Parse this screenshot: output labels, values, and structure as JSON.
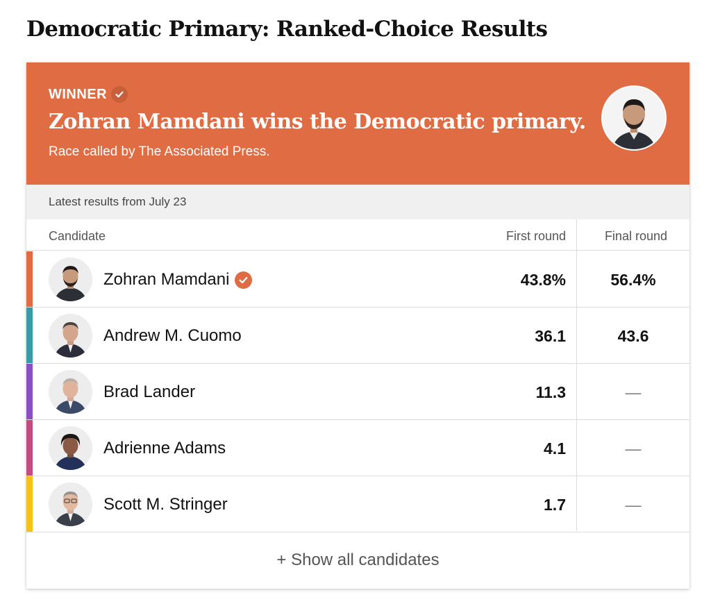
{
  "page": {
    "title": "Democratic Primary: Ranked-Choice Results"
  },
  "banner": {
    "winner_label": "WINNER",
    "headline": "Zohran Mamdani wins the Democratic primary.",
    "subline": "Race called by The Associated Press.",
    "background_color": "#e06c43"
  },
  "updated": "Latest results from July 23",
  "table": {
    "headers": {
      "candidate": "Candidate",
      "first_round": "First round",
      "final_round": "Final round"
    },
    "rows": [
      {
        "name": "Zohran Mamdani",
        "first": "43.8%",
        "final": "56.4%",
        "winner": true,
        "color": "#e06c43"
      },
      {
        "name": "Andrew M. Cuomo",
        "first": "36.1",
        "final": "43.6",
        "winner": false,
        "color": "#3a9aa5"
      },
      {
        "name": "Brad Lander",
        "first": "11.3",
        "final": "—",
        "winner": false,
        "color": "#8a4fc0"
      },
      {
        "name": "Adrienne Adams",
        "first": "4.1",
        "final": "—",
        "winner": false,
        "color": "#c44a82"
      },
      {
        "name": "Scott M. Stringer",
        "first": "1.7",
        "final": "—",
        "winner": false,
        "color": "#f4c21a"
      }
    ]
  },
  "footer": {
    "show_all_label": "+ Show all candidates"
  }
}
